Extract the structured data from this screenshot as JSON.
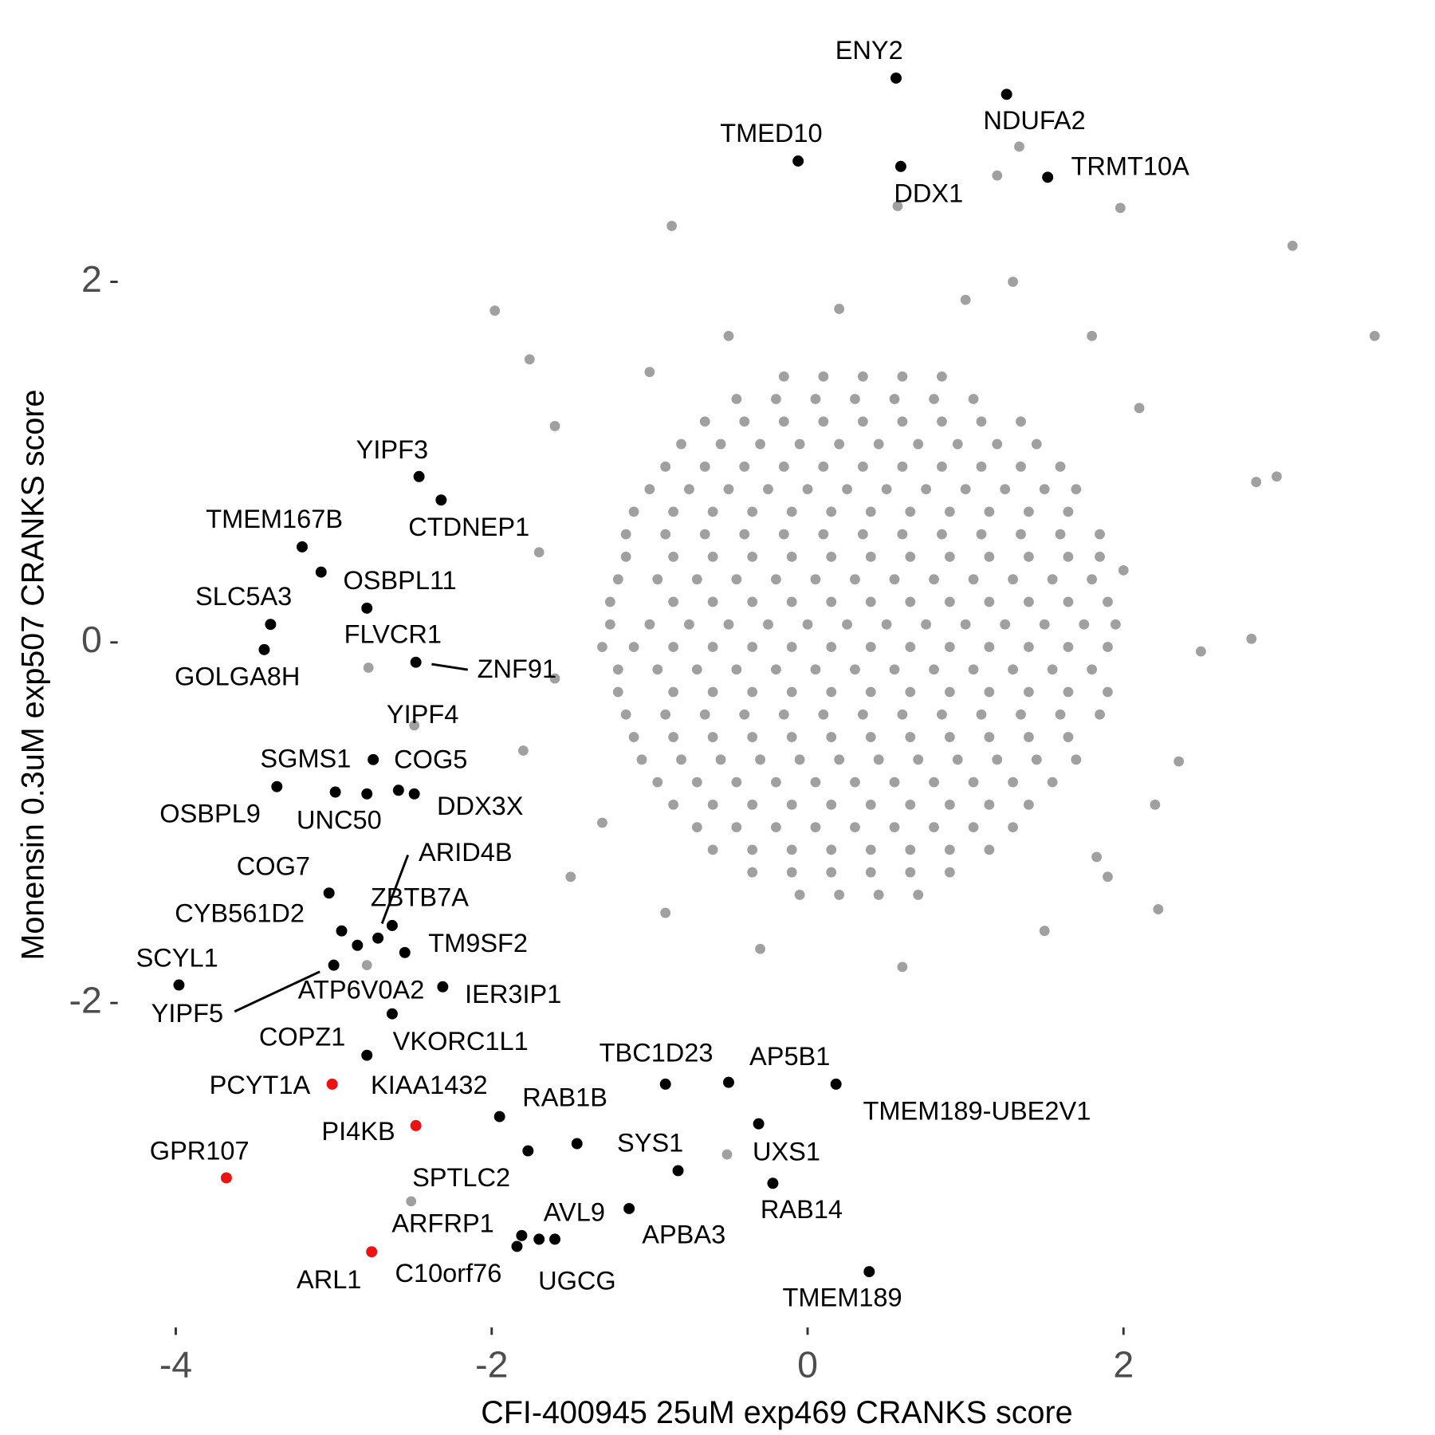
{
  "chart_data": {
    "type": "scatter",
    "xlabel": "CFI-400945 25uM exp469 CRANKS score",
    "ylabel": "Monensin 0.3uM exp507 CRANKS score",
    "xlim": [
      -4.35,
      3.87
    ],
    "ylim": [
      -3.74,
      3.41
    ],
    "xticks": [
      -4,
      -2,
      0,
      2
    ],
    "yticks": [
      -2,
      0,
      2
    ],
    "background": {
      "color": "#a0a0a0",
      "x": [
        -0.15,
        0.1,
        0.35,
        0.6,
        0.85,
        -0.45,
        -0.2,
        0.05,
        0.3,
        0.55,
        0.8,
        1.05,
        -0.65,
        -0.4,
        -0.15,
        0.1,
        0.35,
        0.6,
        0.85,
        1.1,
        1.35,
        -0.8,
        -0.55,
        -0.3,
        -0.05,
        0.2,
        0.45,
        0.7,
        0.95,
        1.2,
        1.45,
        -0.9,
        -0.65,
        -0.4,
        -0.15,
        0.1,
        0.35,
        0.6,
        0.85,
        1.1,
        1.35,
        1.6,
        -1.0,
        -0.75,
        -0.5,
        -0.25,
        0,
        0.25,
        0.5,
        0.75,
        1.0,
        1.25,
        1.5,
        1.7,
        -1.1,
        -0.85,
        -0.6,
        -0.35,
        -0.1,
        0.15,
        0.4,
        0.65,
        0.9,
        1.15,
        1.4,
        1.65,
        -1.15,
        -0.9,
        -0.65,
        -0.4,
        -0.15,
        0.1,
        0.35,
        0.6,
        0.85,
        1.1,
        1.35,
        1.6,
        1.85,
        -1.15,
        -0.85,
        -0.6,
        -0.35,
        -0.1,
        0.15,
        0.4,
        0.65,
        0.9,
        1.15,
        1.4,
        1.65,
        1.85,
        -1.2,
        -0.95,
        -0.7,
        -0.45,
        -0.2,
        0.05,
        0.3,
        0.55,
        0.8,
        1.05,
        1.3,
        1.55,
        1.8,
        -1.25,
        -0.85,
        -0.6,
        -0.35,
        -0.1,
        0.15,
        0.4,
        0.65,
        0.9,
        1.15,
        1.4,
        1.65,
        1.9,
        -1.25,
        -1.0,
        -0.75,
        -0.5,
        -0.25,
        0,
        0.25,
        0.5,
        0.75,
        1.0,
        1.25,
        1.5,
        1.75,
        1.95,
        -1.3,
        -1.1,
        -0.85,
        -0.6,
        -0.35,
        -0.1,
        0.15,
        0.4,
        0.65,
        0.9,
        1.15,
        1.4,
        1.65,
        1.9,
        -1.2,
        -0.95,
        -0.7,
        -0.45,
        -0.2,
        0.05,
        0.3,
        0.55,
        0.8,
        1.05,
        1.3,
        1.55,
        1.8,
        -1.2,
        -0.85,
        -0.6,
        -0.35,
        -0.1,
        0.15,
        0.4,
        0.65,
        0.9,
        1.15,
        1.4,
        1.65,
        1.9,
        -1.15,
        -0.9,
        -0.65,
        -0.4,
        -0.15,
        0.1,
        0.35,
        0.6,
        0.85,
        1.1,
        1.35,
        1.6,
        1.85,
        -1.1,
        -0.85,
        -0.6,
        -0.35,
        -0.1,
        0.15,
        0.4,
        0.65,
        0.9,
        1.15,
        1.4,
        1.65,
        -1.05,
        -0.8,
        -0.55,
        -0.3,
        -0.05,
        0.2,
        0.45,
        0.7,
        0.95,
        1.2,
        1.45,
        1.7,
        -0.95,
        -0.7,
        -0.45,
        -0.2,
        0.05,
        0.3,
        0.55,
        0.8,
        1.05,
        1.3,
        1.55,
        -0.85,
        -0.6,
        -0.35,
        -0.1,
        0.15,
        0.4,
        0.65,
        0.9,
        1.15,
        1.4,
        -0.7,
        -0.45,
        -0.2,
        0.05,
        0.3,
        0.55,
        0.8,
        1.05,
        1.3,
        -0.6,
        -0.35,
        -0.1,
        0.15,
        0.4,
        0.65,
        0.9,
        1.15,
        -0.35,
        -0.1,
        0.15,
        0.4,
        0.65,
        0.9,
        -0.05,
        0.2,
        0.45,
        0.7,
        3.07,
        3.59,
        2.84,
        2.97,
        2.81,
        2.49,
        2.22,
        2.35,
        -1.98,
        -1.76,
        -2.78,
        -2.79,
        -2.51,
        -0.51,
        1.98,
        1.34,
        1.2,
        0.57,
        -0.86,
        1.83,
        -2.49,
        -1.6,
        -1.5,
        2.1,
        2.2,
        -1.7,
        -1.8,
        1.0,
        0.2,
        -0.5,
        0.6,
        -0.3,
        1.5,
        2.0,
        -1.6,
        1.8,
        -1.0,
        1.9,
        -1.3,
        -0.9,
        1.3
      ],
      "y": [
        1.475,
        1.475,
        1.475,
        1.475,
        1.475,
        1.35,
        1.35,
        1.35,
        1.35,
        1.35,
        1.35,
        1.35,
        1.225,
        1.225,
        1.225,
        1.225,
        1.225,
        1.225,
        1.225,
        1.225,
        1.225,
        1.1,
        1.1,
        1.1,
        1.1,
        1.1,
        1.1,
        1.1,
        1.1,
        1.1,
        1.1,
        0.975,
        0.975,
        0.975,
        0.975,
        0.975,
        0.975,
        0.975,
        0.975,
        0.975,
        0.975,
        0.975,
        0.85,
        0.85,
        0.85,
        0.85,
        0.85,
        0.85,
        0.85,
        0.85,
        0.85,
        0.85,
        0.85,
        0.85,
        0.725,
        0.725,
        0.725,
        0.725,
        0.725,
        0.725,
        0.725,
        0.725,
        0.725,
        0.725,
        0.725,
        0.725,
        0.6,
        0.6,
        0.6,
        0.6,
        0.6,
        0.6,
        0.6,
        0.6,
        0.6,
        0.6,
        0.6,
        0.6,
        0.6,
        0.475,
        0.475,
        0.475,
        0.475,
        0.475,
        0.475,
        0.475,
        0.475,
        0.475,
        0.475,
        0.475,
        0.475,
        0.475,
        0.35,
        0.35,
        0.35,
        0.35,
        0.35,
        0.35,
        0.35,
        0.35,
        0.35,
        0.35,
        0.35,
        0.35,
        0.35,
        0.225,
        0.225,
        0.225,
        0.225,
        0.225,
        0.225,
        0.225,
        0.225,
        0.225,
        0.225,
        0.225,
        0.225,
        0.225,
        0.1,
        0.1,
        0.1,
        0.1,
        0.1,
        0.1,
        0.1,
        0.1,
        0.1,
        0.1,
        0.1,
        0.1,
        0.1,
        0.1,
        -0.025,
        -0.025,
        -0.025,
        -0.025,
        -0.025,
        -0.025,
        -0.025,
        -0.025,
        -0.025,
        -0.025,
        -0.025,
        -0.025,
        -0.025,
        -0.025,
        -0.15,
        -0.15,
        -0.15,
        -0.15,
        -0.15,
        -0.15,
        -0.15,
        -0.15,
        -0.15,
        -0.15,
        -0.15,
        -0.15,
        -0.15,
        -0.275,
        -0.275,
        -0.275,
        -0.275,
        -0.275,
        -0.275,
        -0.275,
        -0.275,
        -0.275,
        -0.275,
        -0.275,
        -0.275,
        -0.275,
        -0.4,
        -0.4,
        -0.4,
        -0.4,
        -0.4,
        -0.4,
        -0.4,
        -0.4,
        -0.4,
        -0.4,
        -0.4,
        -0.4,
        -0.4,
        -0.525,
        -0.525,
        -0.525,
        -0.525,
        -0.525,
        -0.525,
        -0.525,
        -0.525,
        -0.525,
        -0.525,
        -0.525,
        -0.525,
        -0.65,
        -0.65,
        -0.65,
        -0.65,
        -0.65,
        -0.65,
        -0.65,
        -0.65,
        -0.65,
        -0.65,
        -0.65,
        -0.65,
        -0.775,
        -0.775,
        -0.775,
        -0.775,
        -0.775,
        -0.775,
        -0.775,
        -0.775,
        -0.775,
        -0.775,
        -0.775,
        -0.9,
        -0.9,
        -0.9,
        -0.9,
        -0.9,
        -0.9,
        -0.9,
        -0.9,
        -0.9,
        -0.9,
        -1.025,
        -1.025,
        -1.025,
        -1.025,
        -1.025,
        -1.025,
        -1.025,
        -1.025,
        -1.025,
        -1.15,
        -1.15,
        -1.15,
        -1.15,
        -1.15,
        -1.15,
        -1.15,
        -1.15,
        -1.275,
        -1.275,
        -1.275,
        -1.275,
        -1.275,
        -1.275,
        -1.4,
        -1.4,
        -1.4,
        -1.4,
        2.2,
        1.7,
        0.89,
        0.92,
        0.02,
        -0.05,
        -1.48,
        -0.66,
        1.84,
        1.57,
        -0.14,
        -1.79,
        -3.1,
        -2.84,
        2.41,
        2.75,
        2.59,
        2.42,
        2.31,
        -1.19,
        -0.46,
        1.2,
        -1.3,
        1.3,
        -0.9,
        0.5,
        -0.6,
        1.9,
        1.85,
        1.7,
        -1.8,
        -1.7,
        -1.6,
        0.4,
        -0.2,
        1.7,
        1.5,
        -1.3,
        -1.0,
        -1.5,
        2.0
      ]
    },
    "labeled": {
      "labels": [
        "ENY2",
        "NDUFA2",
        "TMED10",
        "DDX1",
        "TRMT10A",
        "YIPF3",
        "CTDNEP1",
        "TMEM167B",
        "OSBPL11",
        "SLC5A3",
        "FLVCR1",
        "GOLGA8H",
        "ZNF91",
        "YIPF4",
        "SGMS1",
        "COG5",
        "OSBPL9",
        "UNC50",
        "DDX3X",
        "COG7",
        "CYB561D2",
        "ARID4B",
        "ZBTB7A",
        "ATP6V0A2",
        "TM9SF2",
        "YIPF5",
        "SCYL1",
        "IER3IP1",
        "COPZ1",
        "VKORC1L1",
        "PCYT1A",
        "KIAA1432",
        "PI4KB",
        "RAB1B",
        "SPTLC2",
        "GPR107",
        "TBC1D23",
        "AP5B1",
        "TMEM189-UBE2V1",
        "UXS1",
        "SYS1",
        "RAB14",
        "AVL9",
        "APBA3",
        "ARFRP1",
        "C10orf76",
        "UGCG",
        "ARL1",
        "TMEM189"
      ],
      "x": [
        0.56,
        1.26,
        -0.06,
        0.59,
        1.52,
        -2.46,
        -2.32,
        -3.2,
        -3.08,
        -3.4,
        -2.79,
        -3.44,
        -2.48,
        -2.59,
        -2.99,
        -2.75,
        -3.36,
        -2.79,
        -2.49,
        -3.03,
        -2.95,
        -2.63,
        -2.72,
        -2.85,
        -2.55,
        -3.0,
        -3.98,
        -2.31,
        -2.63,
        -2.79,
        -3.01,
        -1.95,
        -2.48,
        -1.46,
        -1.77,
        -3.68,
        -0.9,
        -0.5,
        0.18,
        -0.31,
        -0.82,
        -0.22,
        -1.7,
        -1.13,
        -1.81,
        -1.84,
        -1.6,
        -2.76,
        0.39
      ],
      "y": [
        3.13,
        3.04,
        2.67,
        2.64,
        2.58,
        0.92,
        0.79,
        0.53,
        0.39,
        0.1,
        0.19,
        -0.04,
        -0.11,
        -0.82,
        -0.83,
        -0.65,
        -0.8,
        -0.84,
        -0.84,
        -1.39,
        -1.6,
        -1.57,
        -1.64,
        -1.68,
        -1.72,
        -1.79,
        -1.9,
        -1.91,
        -2.06,
        -2.29,
        -2.45,
        -2.63,
        -2.68,
        -2.78,
        -2.82,
        -2.97,
        -2.45,
        -2.44,
        -2.45,
        -2.67,
        -2.93,
        -3.0,
        -3.31,
        -3.14,
        -3.29,
        -3.35,
        -3.31,
        -3.38,
        -3.49
      ],
      "colors": [
        "#000000",
        "#000000",
        "#000000",
        "#000000",
        "#000000",
        "#000000",
        "#000000",
        "#000000",
        "#000000",
        "#000000",
        "#000000",
        "#000000",
        "#000000",
        "#000000",
        "#000000",
        "#000000",
        "#000000",
        "#000000",
        "#000000",
        "#000000",
        "#000000",
        "#000000",
        "#000000",
        "#000000",
        "#000000",
        "#000000",
        "#000000",
        "#000000",
        "#000000",
        "#000000",
        "#ee1111",
        "#000000",
        "#ee1111",
        "#000000",
        "#000000",
        "#ee1111",
        "#000000",
        "#000000",
        "#000000",
        "#000000",
        "#000000",
        "#000000",
        "#000000",
        "#000000",
        "#000000",
        "#000000",
        "#000000",
        "#ee1111",
        "#000000"
      ]
    }
  }
}
